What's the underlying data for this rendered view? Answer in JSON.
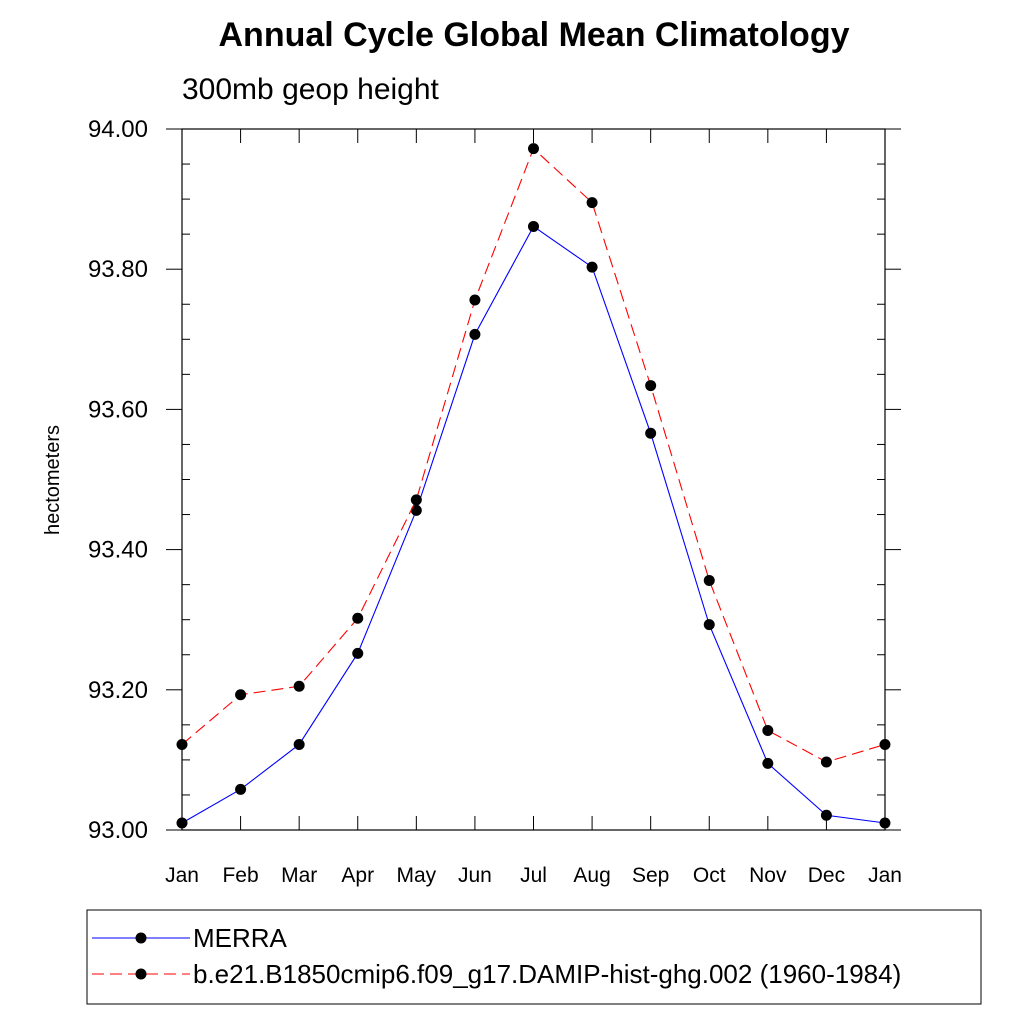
{
  "chart_data": {
    "type": "line",
    "title": "Annual Cycle Global Mean Climatology",
    "subtitle": "300mb geop height",
    "xlabel": "",
    "ylabel": "hectometers",
    "categories": [
      "Jan",
      "Feb",
      "Mar",
      "Apr",
      "May",
      "Jun",
      "Jul",
      "Aug",
      "Sep",
      "Oct",
      "Nov",
      "Dec",
      "Jan"
    ],
    "ylim": [
      93.0,
      94.0
    ],
    "yticks": [
      "93.00",
      "93.20",
      "93.40",
      "93.60",
      "93.80",
      "94.00"
    ],
    "grid": false,
    "legend_position": "bottom",
    "series": [
      {
        "name": "MERRA",
        "color": "#0000ff",
        "dash": "solid",
        "marker": "filled-circle",
        "values": [
          93.01,
          93.058,
          93.122,
          93.252,
          93.456,
          93.707,
          93.861,
          93.803,
          93.566,
          93.293,
          93.095,
          93.021,
          93.01
        ]
      },
      {
        "name": "b.e21.B1850cmip6.f09_g17.DAMIP-hist-ghg.002 (1960-1984)",
        "color": "#ff0000",
        "dash": "dashed",
        "marker": "filled-circle",
        "values": [
          93.122,
          93.193,
          93.205,
          93.302,
          93.471,
          93.756,
          93.972,
          93.895,
          93.634,
          93.356,
          93.142,
          93.097,
          93.122
        ]
      }
    ]
  }
}
